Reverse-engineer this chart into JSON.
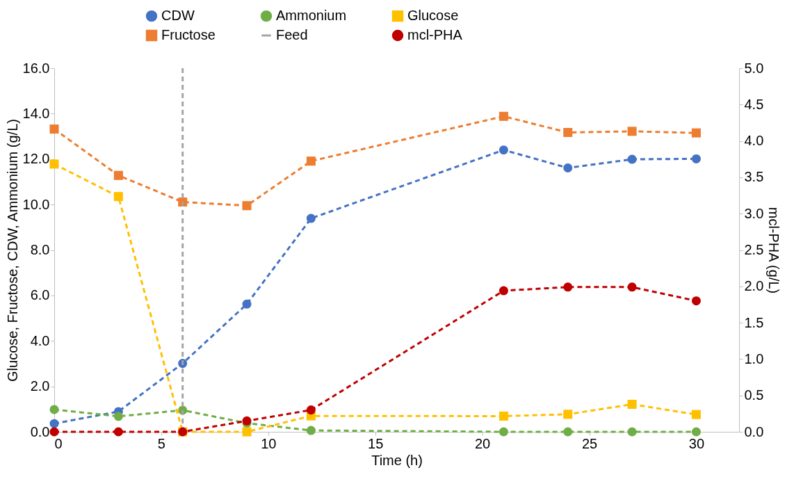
{
  "chart_data": {
    "type": "line",
    "xlabel": "Time (h)",
    "ylabel": "Glucose, Fructose, CDW, Ammonium  (g/L)",
    "y2label": "mcl-PHA (g/L)",
    "x": [
      0,
      3,
      6,
      9,
      12,
      21,
      24,
      27,
      30
    ],
    "series": [
      {
        "name": "CDW",
        "color": "#4472c4",
        "marker": "circle",
        "values": [
          0.36,
          0.89,
          3.01,
          5.62,
          9.39,
          12.4,
          11.61,
          11.99,
          12.01
        ]
      },
      {
        "name": "Ammonium",
        "color": "#70ad47",
        "marker": "circle",
        "values": [
          0.98,
          0.68,
          0.95,
          0.38,
          0.06,
          0.0,
          0.0,
          0.0,
          0.0
        ]
      },
      {
        "name": "Glucose",
        "color": "#ffc000",
        "marker": "square",
        "values": [
          11.78,
          10.35,
          0.0,
          0.0,
          0.7,
          0.69,
          0.77,
          1.21,
          0.76
        ]
      },
      {
        "name": "Fructose",
        "color": "#ed7d31",
        "marker": "square",
        "values": [
          13.32,
          11.28,
          10.11,
          9.95,
          11.91,
          13.88,
          13.17,
          13.22,
          13.15
        ]
      },
      {
        "name": "mcl-PHA",
        "color": "#c00000",
        "marker": "circle",
        "axis": "y2",
        "values": [
          0.0,
          0.0,
          0.0,
          0.15,
          0.3,
          1.94,
          1.99,
          1.99,
          1.8
        ]
      }
    ],
    "ref_lines": [
      {
        "axis": "x",
        "value": 6,
        "label": "Feed",
        "color": "#a5a5a5",
        "line_style": "dashed"
      }
    ],
    "xlim": [
      0,
      32
    ],
    "xticks": [
      0,
      5,
      10,
      15,
      20,
      25,
      30
    ],
    "ylim": [
      0,
      16
    ],
    "yticks": [
      {
        "value": 0,
        "label": "0.0"
      },
      {
        "value": 2,
        "label": "2.0"
      },
      {
        "value": 4,
        "label": "4.0"
      },
      {
        "value": 6,
        "label": "6.0"
      },
      {
        "value": 8,
        "label": "8.0"
      },
      {
        "value": 10,
        "label": "10.0"
      },
      {
        "value": 12,
        "label": "12.0"
      },
      {
        "value": 14,
        "label": "14.0"
      },
      {
        "value": 16,
        "label": "16.0"
      }
    ],
    "y2lim": [
      0,
      5
    ],
    "y2ticks": [
      {
        "value": 0,
        "label": "0.0"
      },
      {
        "value": 0.5,
        "label": "0.5"
      },
      {
        "value": 1,
        "label": "1.0"
      },
      {
        "value": 1.5,
        "label": "1.5"
      },
      {
        "value": 2,
        "label": "2.0"
      },
      {
        "value": 2.5,
        "label": "2.5"
      },
      {
        "value": 3,
        "label": "3.0"
      },
      {
        "value": 3.5,
        "label": "3.5"
      },
      {
        "value": 4,
        "label": "4.0"
      },
      {
        "value": 4.5,
        "label": "4.5"
      },
      {
        "value": 5,
        "label": "5.0"
      }
    ],
    "line_style": "dashed",
    "grid": false,
    "legend": "top"
  }
}
